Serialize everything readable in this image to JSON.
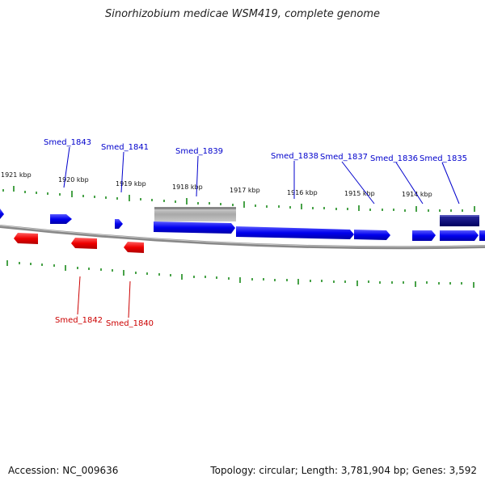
{
  "title": "Sinorhizobium medicae WSM419, complete genome",
  "footer": {
    "accession": "Accession: NC_009636",
    "topology": "Topology: circular; Length: 3,781,904 bp; Genes: 3,592"
  },
  "colors": {
    "forward_gene": "#0000ee",
    "reverse_gene": "#ee0000",
    "selected_gene": "#000080",
    "pseudo_feature": "#b0b0b0",
    "ticks": "#1a8a1a",
    "backbone": "#888888"
  },
  "kbp_labels": [
    "1921 kbp",
    "1920 kbp",
    "1919 kbp",
    "1918 kbp",
    "1917 kbp",
    "1916 kbp",
    "1915 kbp",
    "1914 kbp"
  ],
  "gene_labels": {
    "top": [
      "Smed_1843",
      "Smed_1841",
      "Smed_1839",
      "Smed_1838",
      "Smed_1837",
      "Smed_1836",
      "Smed_1835"
    ],
    "bottom": [
      "Smed_1842",
      "Smed_1840"
    ]
  }
}
